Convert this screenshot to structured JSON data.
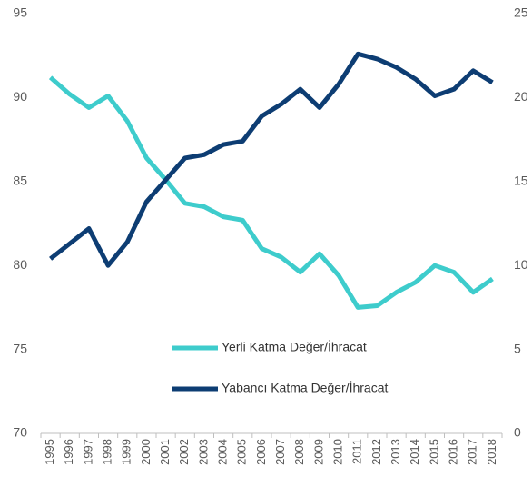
{
  "chart_data": {
    "type": "line",
    "x": [
      "1995",
      "1996",
      "1997",
      "1998",
      "1999",
      "2000",
      "2001",
      "2002",
      "2003",
      "2004",
      "2005",
      "2006",
      "2007",
      "2008",
      "2009",
      "2010",
      "2011",
      "2012",
      "2013",
      "2014",
      "2015",
      "2016",
      "2017",
      "2018"
    ],
    "series": [
      {
        "name": "Yerli Katma Değer/İhracat",
        "color": "#3ecccc",
        "axis": "y",
        "values": [
          91.2,
          90.2,
          89.4,
          90.1,
          88.6,
          86.4,
          85.1,
          83.7,
          83.5,
          82.9,
          82.7,
          81.0,
          80.5,
          79.6,
          80.7,
          79.4,
          77.5,
          77.6,
          78.4,
          79.0,
          80.0,
          79.6,
          78.4,
          79.2
        ]
      },
      {
        "name": "Yabancı Katma Değer/İhracat",
        "color": "#0d3d73",
        "axis": "y2",
        "values": [
          10.4,
          11.3,
          12.2,
          10.0,
          11.4,
          13.8,
          15.1,
          16.4,
          16.6,
          17.2,
          17.4,
          18.9,
          19.6,
          20.5,
          19.4,
          20.8,
          22.6,
          22.3,
          21.8,
          21.1,
          20.1,
          20.5,
          21.6,
          20.9
        ]
      }
    ],
    "ylim": [
      70,
      95
    ],
    "yticks": [
      70,
      75,
      80,
      85,
      90,
      95
    ],
    "y2lim": [
      0,
      25
    ],
    "y2ticks": [
      0,
      5,
      10,
      15,
      20,
      25
    ],
    "grid": false,
    "legend": "center"
  }
}
